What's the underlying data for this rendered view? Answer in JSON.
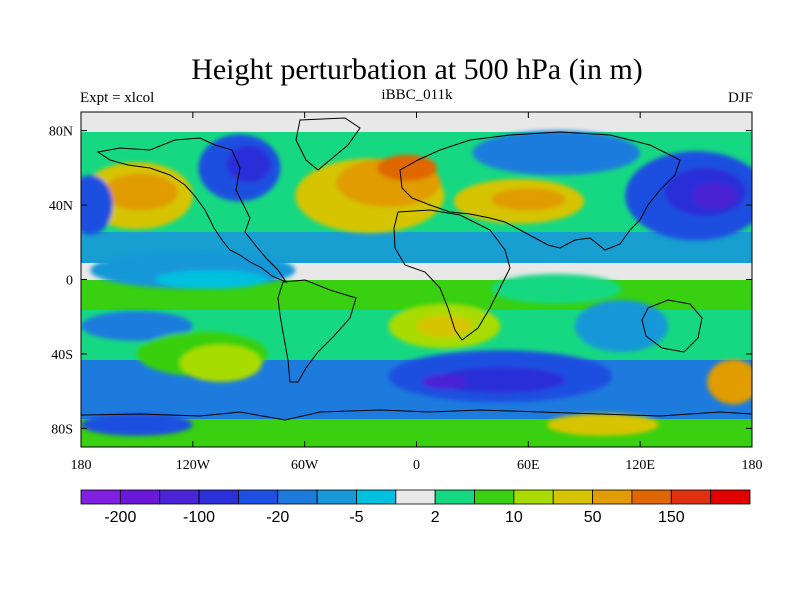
{
  "title": "Height perturbation at 500 hPa (in m)",
  "left_string": "Expt = xlcol",
  "center_string": "iBBC_011k",
  "right_string": "DJF",
  "map": {
    "projection": "cylindrical-equidistant",
    "lon_range": [
      -180,
      180
    ],
    "lat_range": [
      -90,
      90
    ],
    "field": "500 hPa geopotential height perturbation (m)",
    "lat_ticks": [
      {
        "value": 80,
        "label": "80N"
      },
      {
        "value": 40,
        "label": "40N"
      },
      {
        "value": 0,
        "label": "0"
      },
      {
        "value": -40,
        "label": "40S"
      },
      {
        "value": -80,
        "label": "80S"
      }
    ],
    "lon_ticks": [
      {
        "value": -180,
        "label": "180"
      },
      {
        "value": -120,
        "label": "120W"
      },
      {
        "value": -60,
        "label": "60W"
      },
      {
        "value": 0,
        "label": "0"
      },
      {
        "value": 60,
        "label": "60E"
      },
      {
        "value": 120,
        "label": "120E"
      },
      {
        "value": 180,
        "label": "180"
      }
    ]
  },
  "colorbar": {
    "colors": [
      "#7f1fe0",
      "#6a18d8",
      "#4a24d6",
      "#2a2fd8",
      "#1d50e0",
      "#1e7bde",
      "#1898d8",
      "#00c0e0",
      "#e8e8e8",
      "#16d882",
      "#38d010",
      "#a8dc00",
      "#d6c400",
      "#e09c00",
      "#e06600",
      "#e03010",
      "#e00000"
    ],
    "labels": [
      {
        "after_box": 1,
        "text": "-200"
      },
      {
        "after_box": 3,
        "text": "-100"
      },
      {
        "after_box": 5,
        "text": "-20"
      },
      {
        "after_box": 7,
        "text": "-5"
      },
      {
        "after_box": 9,
        "text": "2"
      },
      {
        "after_box": 11,
        "text": "10"
      },
      {
        "after_box": 13,
        "text": "50"
      },
      {
        "after_box": 15,
        "text": "150"
      }
    ]
  },
  "regions": [
    {
      "name": "north-atlantic-high",
      "lon": -25,
      "lat": 45,
      "rx": 40,
      "ry": 20,
      "color": "#d6c400"
    },
    {
      "name": "north-atlantic-high-core",
      "lon": -15,
      "lat": 52,
      "rx": 28,
      "ry": 13,
      "color": "#e09c00"
    },
    {
      "name": "north-atlantic-high-max",
      "lon": -5,
      "lat": 60,
      "rx": 16,
      "ry": 7,
      "color": "#e06600"
    },
    {
      "name": "north-pacific-high",
      "lon": -150,
      "lat": 45,
      "rx": 30,
      "ry": 18,
      "color": "#d6c400"
    },
    {
      "name": "north-pacific-high-core",
      "lon": -148,
      "lat": 47,
      "rx": 20,
      "ry": 10,
      "color": "#e09c00"
    },
    {
      "name": "east-asia-low",
      "lon": 150,
      "lat": 45,
      "rx": 38,
      "ry": 24,
      "color": "#1d50e0"
    },
    {
      "name": "east-asia-low-core",
      "lon": 155,
      "lat": 47,
      "rx": 22,
      "ry": 13,
      "color": "#2a2fd8"
    },
    {
      "name": "east-asia-low-max",
      "lon": 160,
      "lat": 45,
      "rx": 12,
      "ry": 7,
      "color": "#4a24d6"
    },
    {
      "name": "siberia-low",
      "lon": 75,
      "lat": 68,
      "rx": 45,
      "ry": 12,
      "color": "#1e7bde"
    },
    {
      "name": "canada-low",
      "lon": -95,
      "lat": 60,
      "rx": 22,
      "ry": 18,
      "color": "#1d50e0"
    },
    {
      "name": "canada-low-core",
      "lon": -90,
      "lat": 62,
      "rx": 12,
      "ry": 10,
      "color": "#2a2fd8"
    },
    {
      "name": "asia-high",
      "lon": 55,
      "lat": 42,
      "rx": 35,
      "ry": 12,
      "color": "#d6c400"
    },
    {
      "name": "asia-high-core",
      "lon": 60,
      "lat": 43,
      "rx": 20,
      "ry": 6,
      "color": "#e09c00"
    },
    {
      "name": "alaska-low",
      "lon": -175,
      "lat": 40,
      "rx": 12,
      "ry": 16,
      "color": "#1d50e0"
    },
    {
      "name": "tropical-pacific-blue",
      "lon": -120,
      "lat": 5,
      "rx": 55,
      "ry": 10,
      "color": "#1898d8"
    },
    {
      "name": "tropical-pacific-cyan",
      "lon": -110,
      "lat": 0,
      "rx": 30,
      "ry": 5,
      "color": "#00c0e0"
    },
    {
      "name": "south-pacific-low",
      "lon": -150,
      "lat": -25,
      "rx": 30,
      "ry": 8,
      "color": "#1e7bde"
    },
    {
      "name": "south-pacific-green",
      "lon": -115,
      "lat": -40,
      "rx": 35,
      "ry": 12,
      "color": "#38d010"
    },
    {
      "name": "south-pacific-yellow",
      "lon": -105,
      "lat": -45,
      "rx": 22,
      "ry": 10,
      "color": "#a8dc00"
    },
    {
      "name": "south-atlantic-high",
      "lon": 15,
      "lat": -25,
      "rx": 30,
      "ry": 12,
      "color": "#a8dc00"
    },
    {
      "name": "south-atlantic-high-core",
      "lon": 15,
      "lat": -25,
      "rx": 15,
      "ry": 6,
      "color": "#d6c400"
    },
    {
      "name": "southern-ocean-low",
      "lon": 45,
      "lat": -52,
      "rx": 60,
      "ry": 14,
      "color": "#1d50e0"
    },
    {
      "name": "southern-ocean-low-core",
      "lon": 45,
      "lat": -54,
      "rx": 35,
      "ry": 7,
      "color": "#2a2fd8"
    },
    {
      "name": "southern-ocean-low-max",
      "lon": 15,
      "lat": -55,
      "rx": 12,
      "ry": 4,
      "color": "#4a24d6"
    },
    {
      "name": "south-pacific-high-east",
      "lon": 170,
      "lat": -55,
      "rx": 14,
      "ry": 12,
      "color": "#e09c00"
    },
    {
      "name": "tasman-blue",
      "lon": 110,
      "lat": -25,
      "rx": 25,
      "ry": 14,
      "color": "#1898d8"
    },
    {
      "name": "antarctic-low",
      "lon": -150,
      "lat": -78,
      "rx": 30,
      "ry": 6,
      "color": "#1d50e0"
    },
    {
      "name": "antarctic-yellow",
      "lon": 100,
      "lat": -78,
      "rx": 30,
      "ry": 6,
      "color": "#d6c400"
    },
    {
      "name": "indian-ocean-green",
      "lon": 75,
      "lat": -5,
      "rx": 35,
      "ry": 8,
      "color": "#16d882"
    }
  ]
}
